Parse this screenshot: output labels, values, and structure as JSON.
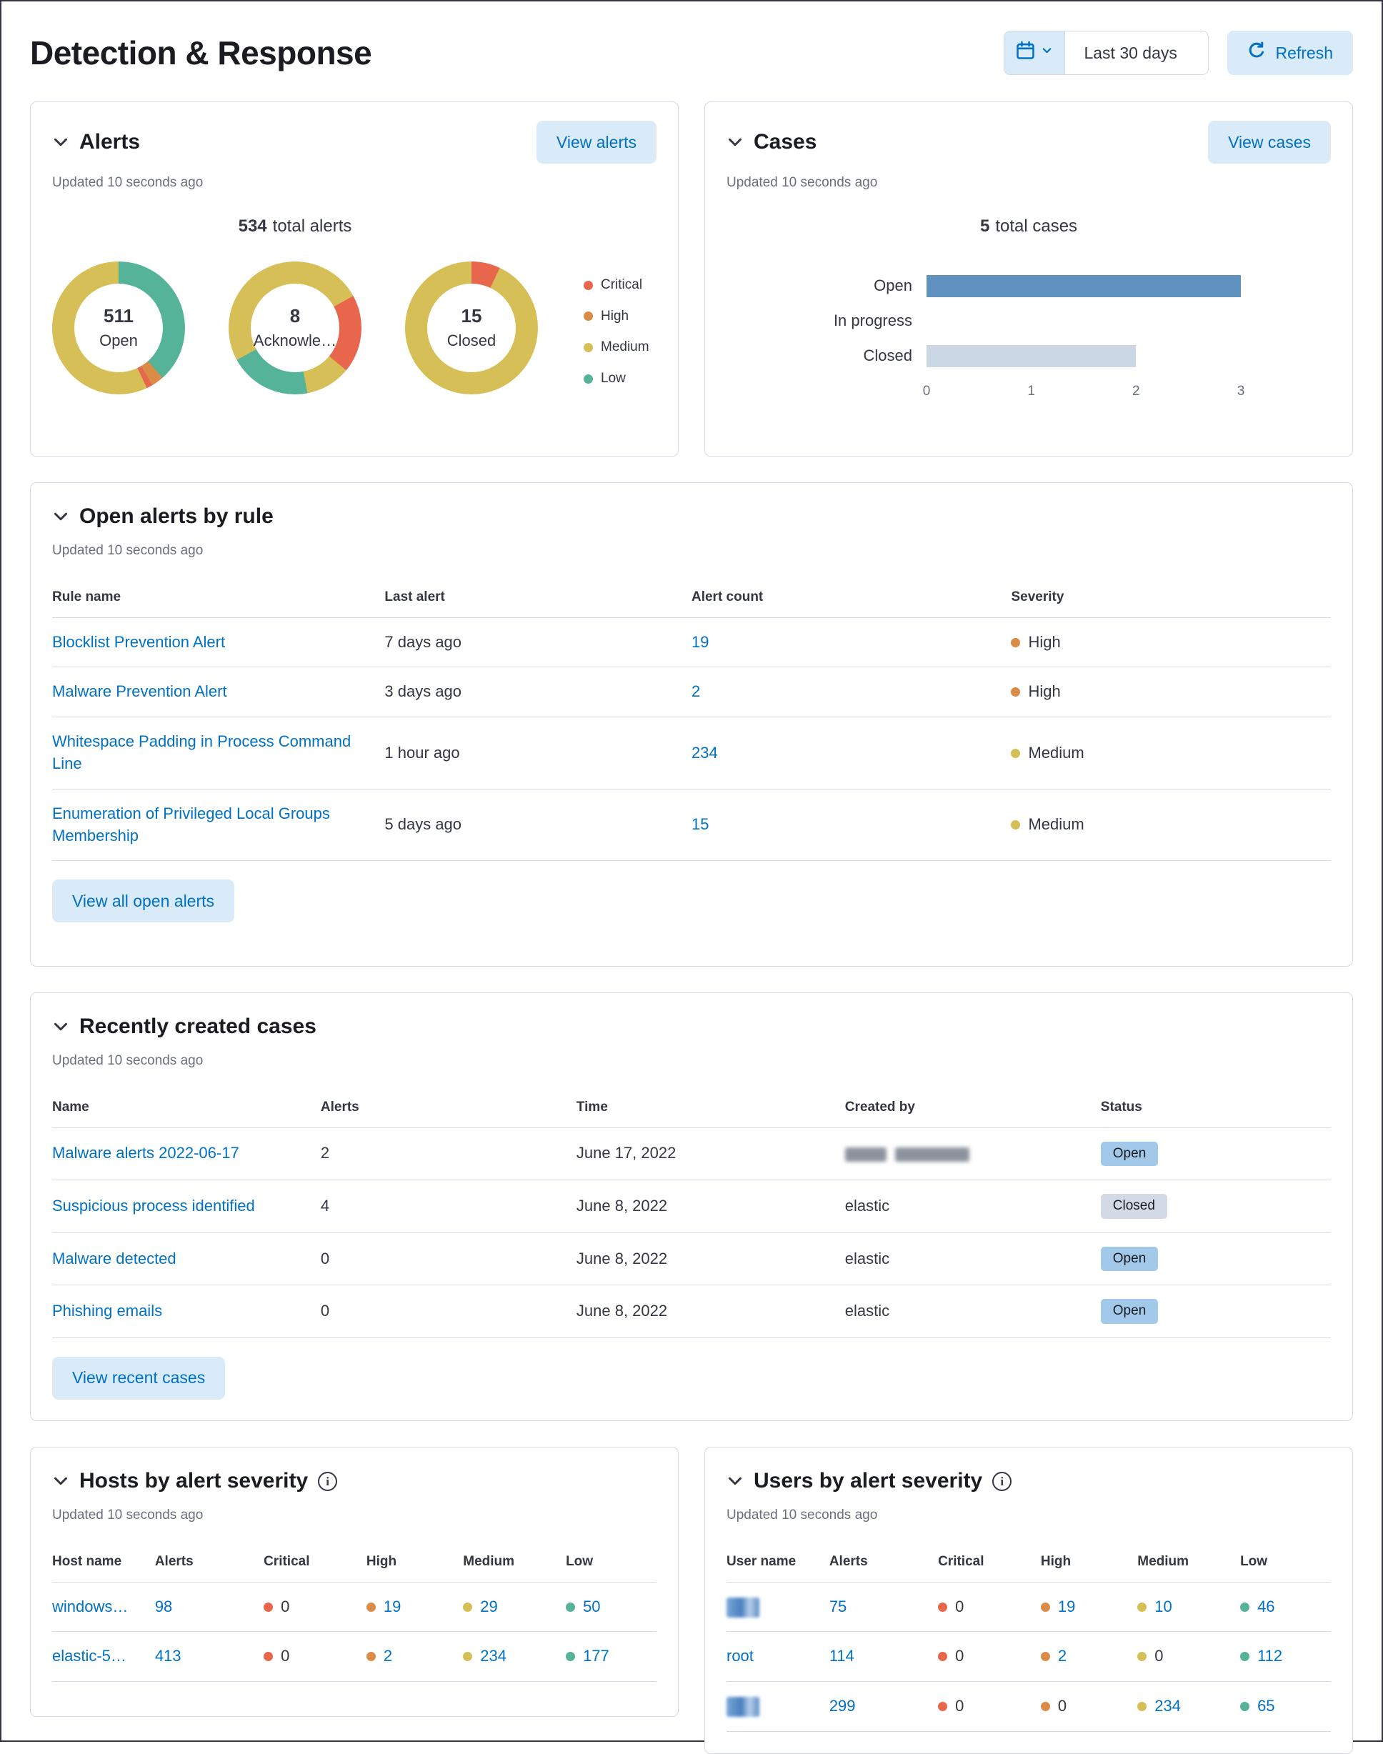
{
  "page": {
    "title": "Detection & Response"
  },
  "toolbar": {
    "date_range": "Last 30 days",
    "refresh_label": "Refresh"
  },
  "colors": {
    "primary": "#0071c2",
    "light_button_bg": "#d9eaf8",
    "panel_border": "#d3dae6",
    "subdued_text": "#69707d"
  },
  "severity_colors": {
    "critical": "#e7664c",
    "high": "#da8b45",
    "medium": "#d6bf57",
    "low": "#54b399"
  },
  "alerts_panel": {
    "title": "Alerts",
    "view_button": "View alerts",
    "updated": "Updated 10 seconds ago",
    "total": {
      "value": "534",
      "label": "total alerts"
    },
    "chart_data": {
      "type": "donut",
      "title": "534 total alerts",
      "legend_position": "right",
      "legend": [
        {
          "label": "Critical",
          "color": "#e7664c"
        },
        {
          "label": "High",
          "color": "#da8b45"
        },
        {
          "label": "Medium",
          "color": "#d6bf57"
        },
        {
          "label": "Low",
          "color": "#54b399"
        }
      ],
      "donuts": [
        {
          "value": "511",
          "label": "Open",
          "segments": [
            {
              "name": "Low",
              "color": "#54b399",
              "pct": 38.5
            },
            {
              "name": "High",
              "color": "#da8b45",
              "pct": 3
            },
            {
              "name": "Critical",
              "color": "#e7664c",
              "pct": 1.5
            },
            {
              "name": "Medium",
              "color": "#d6bf57",
              "pct": 57
            }
          ]
        },
        {
          "value": "8",
          "label": "Acknowle…",
          "segments": [
            {
              "name": "Medium",
              "color": "#d6bf57",
              "pct": 17
            },
            {
              "name": "Critical",
              "color": "#e7664c",
              "pct": 19
            },
            {
              "name": "Medium",
              "color": "#d6bf57",
              "pct": 11
            },
            {
              "name": "Low",
              "color": "#54b399",
              "pct": 20
            },
            {
              "name": "Medium",
              "color": "#d6bf57",
              "pct": 33
            }
          ]
        },
        {
          "value": "15",
          "label": "Closed",
          "segments": [
            {
              "name": "Critical",
              "color": "#e7664c",
              "pct": 7
            },
            {
              "name": "Medium",
              "color": "#d6bf57",
              "pct": 93
            }
          ]
        }
      ]
    }
  },
  "cases_panel": {
    "title": "Cases",
    "view_button": "View cases",
    "updated": "Updated 10 seconds ago",
    "total": {
      "value": "5",
      "label": "total cases"
    },
    "chart_data": {
      "type": "bar",
      "orientation": "horizontal",
      "title": "5 total cases",
      "categories": [
        "Open",
        "In progress",
        "Closed"
      ],
      "bars": [
        {
          "label": "Open",
          "value": 3,
          "color": "#6092c0"
        },
        {
          "label": "In progress",
          "value": 0,
          "color": "#6092c0"
        },
        {
          "label": "Closed",
          "value": 2,
          "color": "#cbd7e4"
        }
      ],
      "xlim": [
        0,
        3
      ],
      "ticks": [
        "0",
        "1",
        "2",
        "3"
      ]
    }
  },
  "open_alerts": {
    "title": "Open alerts by rule",
    "updated": "Updated 10 seconds ago",
    "view_button": "View all open alerts",
    "columns": [
      "Rule name",
      "Last alert",
      "Alert count",
      "Severity"
    ],
    "rows": [
      {
        "rule": "Blocklist Prevention Alert",
        "last_alert": "7 days ago",
        "count": "19",
        "severity": "High",
        "severity_color": "#da8b45"
      },
      {
        "rule": "Malware Prevention Alert",
        "last_alert": "3 days ago",
        "count": "2",
        "severity": "High",
        "severity_color": "#da8b45"
      },
      {
        "rule": "Whitespace Padding in Process Command Line",
        "last_alert": "1 hour ago",
        "count": "234",
        "severity": "Medium",
        "severity_color": "#d6bf57"
      },
      {
        "rule": "Enumeration of Privileged Local Groups Membership",
        "last_alert": "5 days ago",
        "count": "15",
        "severity": "Medium",
        "severity_color": "#d6bf57"
      }
    ]
  },
  "recent_cases": {
    "title": "Recently created cases",
    "updated": "Updated 10 seconds ago",
    "view_button": "View recent cases",
    "columns": [
      "Name",
      "Alerts",
      "Time",
      "Created by",
      "Status"
    ],
    "status_colors": {
      "Open": "#a2c9ea",
      "Closed": "#d3dae6"
    },
    "rows": [
      {
        "name": "Malware alerts 2022-06-17",
        "alerts": "2",
        "time": "June 17, 2022",
        "created_by": "",
        "created_by_redacted": true,
        "status": "Open"
      },
      {
        "name": "Suspicious process identified",
        "alerts": "4",
        "time": "June 8, 2022",
        "created_by": "elastic",
        "status": "Closed"
      },
      {
        "name": "Malware detected",
        "alerts": "0",
        "time": "June 8, 2022",
        "created_by": "elastic",
        "status": "Open"
      },
      {
        "name": "Phishing emails",
        "alerts": "0",
        "time": "June 8, 2022",
        "created_by": "elastic",
        "status": "Open"
      }
    ]
  },
  "hosts_panel": {
    "title": "Hosts by alert severity",
    "updated": "Updated 10 seconds ago",
    "columns": [
      "Host name",
      "Alerts",
      "Critical",
      "High",
      "Medium",
      "Low"
    ],
    "rows": [
      {
        "host": "windows…",
        "alerts": "98",
        "critical": "0",
        "high": "19",
        "medium": "29",
        "low": "50"
      },
      {
        "host": "elastic-5…",
        "alerts": "413",
        "critical": "0",
        "high": "2",
        "medium": "234",
        "low": "177"
      }
    ]
  },
  "users_panel": {
    "title": "Users by alert severity",
    "updated": "Updated 10 seconds ago",
    "columns": [
      "User name",
      "Alerts",
      "Critical",
      "High",
      "Medium",
      "Low"
    ],
    "rows": [
      {
        "user": "",
        "user_redacted": true,
        "alerts": "75",
        "critical": "0",
        "high": "19",
        "medium": "10",
        "low": "46"
      },
      {
        "user": "root",
        "user_redacted": false,
        "alerts": "114",
        "critical": "0",
        "high": "2",
        "medium": "0",
        "low": "112"
      },
      {
        "user": "",
        "user_redacted": true,
        "alerts": "299",
        "critical": "0",
        "high": "0",
        "medium": "234",
        "low": "65"
      }
    ]
  }
}
